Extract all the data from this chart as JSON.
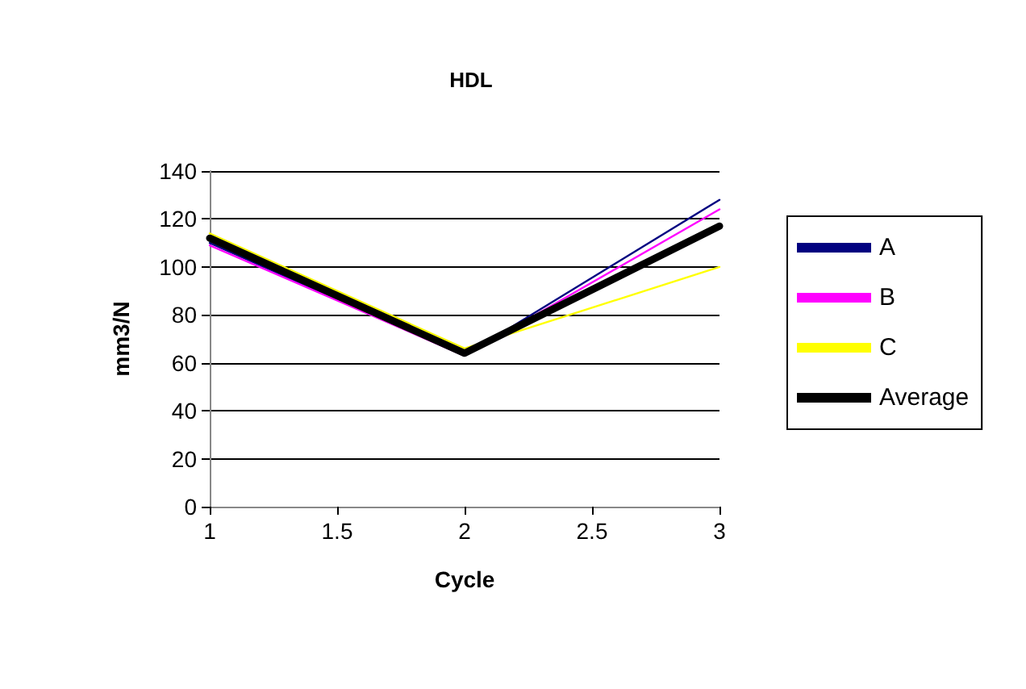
{
  "chart_data": {
    "type": "line",
    "title": "HDL",
    "xlabel": "Cycle",
    "ylabel": "mm3/N",
    "x": [
      1,
      2,
      3
    ],
    "series": [
      {
        "name": "A",
        "color": "#000080",
        "values": [
          110,
          63,
          128
        ]
      },
      {
        "name": "B",
        "color": "#ff00ff",
        "values": [
          109,
          63,
          124
        ]
      },
      {
        "name": "C",
        "color": "#ffff00",
        "values": [
          114,
          66,
          100
        ]
      },
      {
        "name": "Average",
        "color": "#000000",
        "values": [
          112,
          64,
          117
        ]
      }
    ],
    "xlim": [
      1,
      3
    ],
    "xticks": [
      1,
      1.5,
      2,
      2.5,
      3
    ],
    "ylim": [
      0,
      140
    ],
    "yticks": [
      0,
      20,
      40,
      60,
      80,
      100,
      120,
      140
    ],
    "grid": "y",
    "legend": "right",
    "marker": "none",
    "line_style": "solid"
  }
}
